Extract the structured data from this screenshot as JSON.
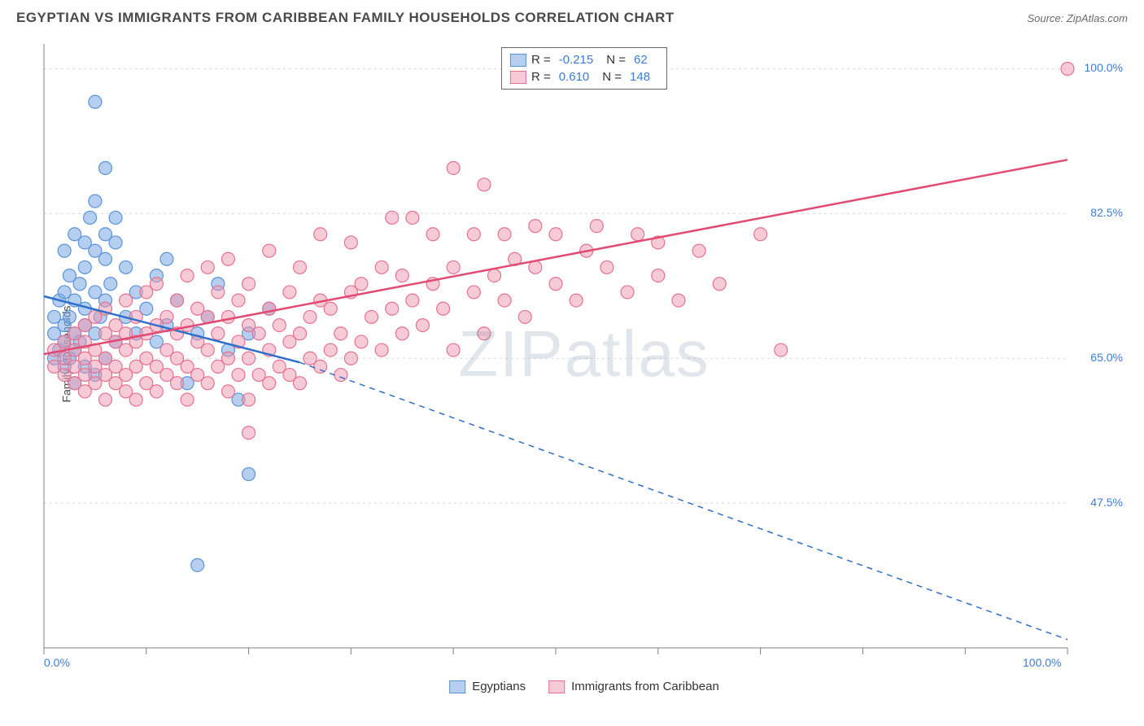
{
  "header": {
    "title": "EGYPTIAN VS IMMIGRANTS FROM CARIBBEAN FAMILY HOUSEHOLDS CORRELATION CHART",
    "source_prefix": "Source: ",
    "source_name": "ZipAtlas.com"
  },
  "chart": {
    "type": "scatter",
    "y_label": "Family Households",
    "watermark": "ZIPatlas",
    "background_color": "#ffffff",
    "grid_color": "#d8d8d8",
    "axis_color": "#808080",
    "tick_label_color": "#3b7dd8",
    "x_range": [
      0,
      100
    ],
    "y_range": [
      30,
      103
    ],
    "x_ticks": [
      0,
      10,
      20,
      30,
      40,
      50,
      60,
      70,
      80,
      90,
      100
    ],
    "x_tick_labels_shown": {
      "0": "0.0%",
      "100": "100.0%"
    },
    "y_gridlines": [
      47.5,
      65.0,
      82.5,
      100.0
    ],
    "y_tick_labels": [
      "47.5%",
      "65.0%",
      "82.5%",
      "100.0%"
    ],
    "series": [
      {
        "name": "Egyptians",
        "marker_color_fill": "rgba(122,167,229,0.55)",
        "marker_color_stroke": "#5a94d8",
        "marker_radius": 8,
        "line_color": "#2f6fc9",
        "line_width": 2.5,
        "R": "-0.215",
        "N": "62",
        "trend_start": [
          0,
          72.5
        ],
        "trend_solid_end": [
          25,
          64.5
        ],
        "trend_dash_end": [
          100,
          31
        ],
        "points": [
          [
            1,
            65
          ],
          [
            1,
            68
          ],
          [
            1,
            70
          ],
          [
            1.5,
            66
          ],
          [
            1.5,
            72
          ],
          [
            2,
            64
          ],
          [
            2,
            67
          ],
          [
            2,
            69
          ],
          [
            2,
            73
          ],
          [
            2,
            78
          ],
          [
            2.5,
            65
          ],
          [
            2.5,
            70
          ],
          [
            2.5,
            75
          ],
          [
            3,
            62
          ],
          [
            3,
            66
          ],
          [
            3,
            68
          ],
          [
            3,
            72
          ],
          [
            3,
            80
          ],
          [
            3.5,
            67
          ],
          [
            3.5,
            74
          ],
          [
            4,
            64
          ],
          [
            4,
            69
          ],
          [
            4,
            71
          ],
          [
            4,
            76
          ],
          [
            4,
            79
          ],
          [
            4.5,
            82
          ],
          [
            5,
            63
          ],
          [
            5,
            68
          ],
          [
            5,
            73
          ],
          [
            5,
            78
          ],
          [
            5,
            84
          ],
          [
            5,
            96
          ],
          [
            5.5,
            70
          ],
          [
            6,
            65
          ],
          [
            6,
            72
          ],
          [
            6,
            77
          ],
          [
            6,
            80
          ],
          [
            6,
            88
          ],
          [
            6.5,
            74
          ],
          [
            7,
            67
          ],
          [
            7,
            79
          ],
          [
            7,
            82
          ],
          [
            8,
            70
          ],
          [
            8,
            76
          ],
          [
            9,
            68
          ],
          [
            9,
            73
          ],
          [
            10,
            71
          ],
          [
            11,
            67
          ],
          [
            11,
            75
          ],
          [
            12,
            69
          ],
          [
            12,
            77
          ],
          [
            13,
            72
          ],
          [
            14,
            62
          ],
          [
            15,
            68
          ],
          [
            16,
            70
          ],
          [
            17,
            74
          ],
          [
            18,
            66
          ],
          [
            19,
            60
          ],
          [
            20,
            51
          ],
          [
            20,
            68
          ],
          [
            22,
            71
          ],
          [
            15,
            40
          ]
        ]
      },
      {
        "name": "Immigrants from Caribbean",
        "marker_color_fill": "rgba(240,150,175,0.5)",
        "marker_color_stroke": "#e5738f",
        "marker_radius": 8,
        "line_color": "#e14b72",
        "line_width": 2.5,
        "R": "0.610",
        "N": "148",
        "trend_start": [
          0,
          65.5
        ],
        "trend_solid_end": [
          100,
          89
        ],
        "trend_dash_end": null,
        "points": [
          [
            1,
            64
          ],
          [
            1,
            66
          ],
          [
            2,
            63
          ],
          [
            2,
            65
          ],
          [
            2,
            67
          ],
          [
            3,
            62
          ],
          [
            3,
            64
          ],
          [
            3,
            66
          ],
          [
            3,
            68
          ],
          [
            4,
            61
          ],
          [
            4,
            63
          ],
          [
            4,
            65
          ],
          [
            4,
            67
          ],
          [
            4,
            69
          ],
          [
            5,
            62
          ],
          [
            5,
            64
          ],
          [
            5,
            66
          ],
          [
            5,
            70
          ],
          [
            6,
            60
          ],
          [
            6,
            63
          ],
          [
            6,
            65
          ],
          [
            6,
            68
          ],
          [
            6,
            71
          ],
          [
            7,
            62
          ],
          [
            7,
            64
          ],
          [
            7,
            67
          ],
          [
            7,
            69
          ],
          [
            8,
            61
          ],
          [
            8,
            63
          ],
          [
            8,
            66
          ],
          [
            8,
            68
          ],
          [
            8,
            72
          ],
          [
            9,
            60
          ],
          [
            9,
            64
          ],
          [
            9,
            67
          ],
          [
            9,
            70
          ],
          [
            10,
            62
          ],
          [
            10,
            65
          ],
          [
            10,
            68
          ],
          [
            10,
            73
          ],
          [
            11,
            61
          ],
          [
            11,
            64
          ],
          [
            11,
            69
          ],
          [
            11,
            74
          ],
          [
            12,
            63
          ],
          [
            12,
            66
          ],
          [
            12,
            70
          ],
          [
            13,
            62
          ],
          [
            13,
            65
          ],
          [
            13,
            68
          ],
          [
            13,
            72
          ],
          [
            14,
            60
          ],
          [
            14,
            64
          ],
          [
            14,
            69
          ],
          [
            14,
            75
          ],
          [
            15,
            63
          ],
          [
            15,
            67
          ],
          [
            15,
            71
          ],
          [
            16,
            62
          ],
          [
            16,
            66
          ],
          [
            16,
            70
          ],
          [
            16,
            76
          ],
          [
            17,
            64
          ],
          [
            17,
            68
          ],
          [
            17,
            73
          ],
          [
            18,
            61
          ],
          [
            18,
            65
          ],
          [
            18,
            70
          ],
          [
            18,
            77
          ],
          [
            19,
            63
          ],
          [
            19,
            67
          ],
          [
            19,
            72
          ],
          [
            20,
            56
          ],
          [
            20,
            60
          ],
          [
            20,
            65
          ],
          [
            20,
            69
          ],
          [
            20,
            74
          ],
          [
            21,
            63
          ],
          [
            21,
            68
          ],
          [
            22,
            62
          ],
          [
            22,
            66
          ],
          [
            22,
            71
          ],
          [
            22,
            78
          ],
          [
            23,
            64
          ],
          [
            23,
            69
          ],
          [
            24,
            63
          ],
          [
            24,
            67
          ],
          [
            24,
            73
          ],
          [
            25,
            62
          ],
          [
            25,
            68
          ],
          [
            25,
            76
          ],
          [
            26,
            65
          ],
          [
            26,
            70
          ],
          [
            27,
            64
          ],
          [
            27,
            72
          ],
          [
            27,
            80
          ],
          [
            28,
            66
          ],
          [
            28,
            71
          ],
          [
            29,
            63
          ],
          [
            29,
            68
          ],
          [
            30,
            65
          ],
          [
            30,
            73
          ],
          [
            30,
            79
          ],
          [
            31,
            67
          ],
          [
            31,
            74
          ],
          [
            32,
            70
          ],
          [
            33,
            66
          ],
          [
            33,
            76
          ],
          [
            34,
            71
          ],
          [
            34,
            82
          ],
          [
            35,
            68
          ],
          [
            35,
            75
          ],
          [
            36,
            72
          ],
          [
            36,
            82
          ],
          [
            37,
            69
          ],
          [
            38,
            74
          ],
          [
            38,
            80
          ],
          [
            39,
            71
          ],
          [
            40,
            66
          ],
          [
            40,
            76
          ],
          [
            40,
            88
          ],
          [
            42,
            73
          ],
          [
            42,
            80
          ],
          [
            43,
            68
          ],
          [
            43,
            86
          ],
          [
            44,
            75
          ],
          [
            45,
            72
          ],
          [
            45,
            80
          ],
          [
            46,
            77
          ],
          [
            47,
            70
          ],
          [
            48,
            76
          ],
          [
            48,
            81
          ],
          [
            50,
            74
          ],
          [
            50,
            80
          ],
          [
            52,
            72
          ],
          [
            53,
            78
          ],
          [
            54,
            81
          ],
          [
            55,
            76
          ],
          [
            57,
            73
          ],
          [
            58,
            80
          ],
          [
            60,
            75
          ],
          [
            60,
            79
          ],
          [
            62,
            72
          ],
          [
            64,
            78
          ],
          [
            66,
            74
          ],
          [
            70,
            80
          ],
          [
            72,
            66
          ],
          [
            100,
            100
          ]
        ]
      }
    ],
    "legend_box": {
      "border_color": "#666666",
      "bg": "#ffffff"
    },
    "bottom_legend": [
      {
        "swatch_fill": "rgba(122,167,229,0.55)",
        "swatch_stroke": "#5a94d8",
        "label": "Egyptians"
      },
      {
        "swatch_fill": "rgba(240,150,175,0.5)",
        "swatch_stroke": "#e5738f",
        "label": "Immigrants from Caribbean"
      }
    ]
  }
}
